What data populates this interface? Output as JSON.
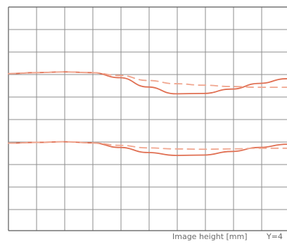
{
  "colors": {
    "grid_line": "#595959",
    "grid_line_light": "#8e8e8e",
    "curve_solid": "#e06f52",
    "curve_dashed": "#f0a68f",
    "text": "#6a6a6a"
  },
  "chart_data": {
    "type": "line",
    "title": "",
    "xlabel": "Image height [mm]",
    "ylabel": "",
    "y_position_note": "Y=4",
    "x_ticks": [],
    "y_ticks": [],
    "xlim": [
      0,
      1
    ],
    "ylim": [
      -1,
      1
    ],
    "grid": true,
    "legend": "none",
    "series": [
      {
        "style": "solid",
        "x": [
          0.0,
          0.1,
          0.2,
          0.3,
          0.4,
          0.5,
          0.6,
          0.7,
          0.8,
          0.9,
          1.0
        ],
        "y": [
          0.404,
          0.413,
          0.42,
          0.413,
          0.368,
          0.285,
          0.224,
          0.227,
          0.266,
          0.317,
          0.359
        ]
      },
      {
        "style": "dashed",
        "x": [
          0.0,
          0.1,
          0.2,
          0.3,
          0.4,
          0.5,
          0.6,
          0.7,
          0.8,
          0.9,
          1.0
        ],
        "y": [
          0.404,
          0.413,
          0.42,
          0.413,
          0.388,
          0.343,
          0.314,
          0.301,
          0.289,
          0.282,
          0.282
        ]
      },
      {
        "style": "solid",
        "x": [
          0.0,
          0.1,
          0.2,
          0.3,
          0.4,
          0.5,
          0.6,
          0.7,
          0.8,
          0.9,
          1.0
        ],
        "y": [
          -0.218,
          -0.211,
          -0.205,
          -0.215,
          -0.256,
          -0.301,
          -0.327,
          -0.324,
          -0.292,
          -0.256,
          -0.227
        ]
      },
      {
        "style": "dashed",
        "x": [
          0.0,
          0.1,
          0.2,
          0.3,
          0.4,
          0.5,
          0.6,
          0.7,
          0.8,
          0.9,
          1.0
        ],
        "y": [
          -0.218,
          -0.211,
          -0.205,
          -0.215,
          -0.237,
          -0.26,
          -0.269,
          -0.272,
          -0.269,
          -0.263,
          -0.263
        ]
      }
    ]
  }
}
